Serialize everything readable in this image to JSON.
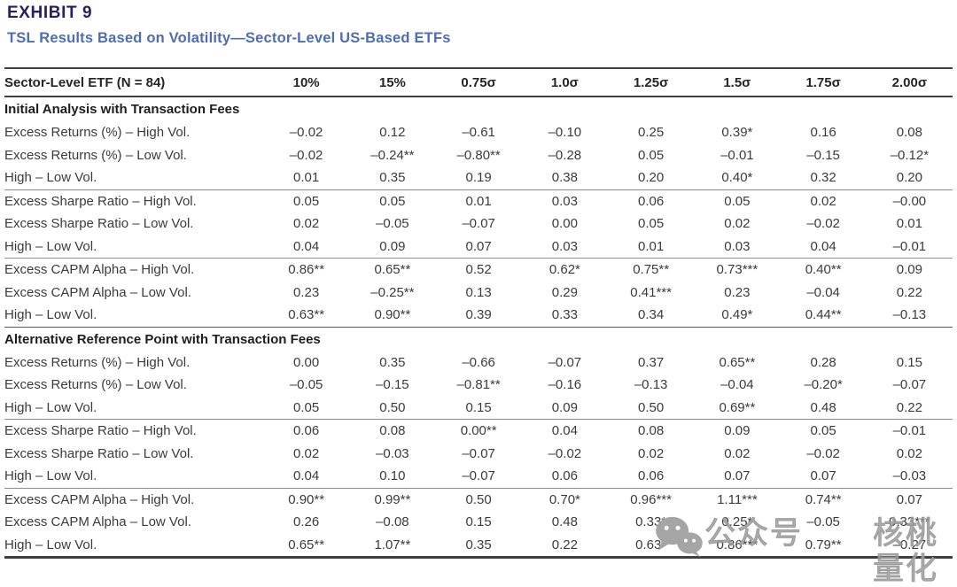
{
  "header": {
    "exhibit_label": "EXHIBIT 9",
    "subtitle": "TSL Results Based on Volatility—Sector-Level US-Based ETFs"
  },
  "table": {
    "label_header": "Sector-Level ETF (N = 84)",
    "columns": [
      "10%",
      "15%",
      "0.75σ",
      "1.0σ",
      "1.25σ",
      "1.5σ",
      "1.75σ",
      "2.00σ"
    ],
    "sections": [
      {
        "title": "Initial Analysis with Transaction Fees",
        "groups": [
          {
            "rows": [
              {
                "label": "Excess Returns (%) – High Vol.",
                "values": [
                  "–0.02",
                  "0.12",
                  "–0.61",
                  "–0.10",
                  "0.25",
                  "0.39*",
                  "0.16",
                  "0.08"
                ]
              },
              {
                "label": "Excess Returns (%) – Low Vol.",
                "values": [
                  "–0.02",
                  "–0.24**",
                  "–0.80**",
                  "–0.28",
                  "0.05",
                  "–0.01",
                  "–0.15",
                  "–0.12*"
                ]
              },
              {
                "label": "High – Low Vol.",
                "values": [
                  "0.01",
                  "0.35",
                  "0.19",
                  "0.38",
                  "0.20",
                  "0.40*",
                  "0.32",
                  "0.20"
                ]
              }
            ]
          },
          {
            "rows": [
              {
                "label": "Excess Sharpe Ratio – High Vol.",
                "values": [
                  "0.05",
                  "0.05",
                  "0.01",
                  "0.03",
                  "0.06",
                  "0.05",
                  "0.02",
                  "–0.00"
                ]
              },
              {
                "label": "Excess Sharpe Ratio – Low Vol.",
                "values": [
                  "0.02",
                  "–0.05",
                  "–0.07",
                  "0.00",
                  "0.05",
                  "0.02",
                  "–0.02",
                  "0.01"
                ]
              },
              {
                "label": "High – Low Vol.",
                "values": [
                  "0.04",
                  "0.09",
                  "0.07",
                  "0.03",
                  "0.01",
                  "0.03",
                  "0.04",
                  "–0.01"
                ]
              }
            ]
          },
          {
            "rows": [
              {
                "label": "Excess CAPM Alpha – High Vol.",
                "values": [
                  "0.86**",
                  "0.65**",
                  "0.52",
                  "0.62*",
                  "0.75**",
                  "0.73***",
                  "0.40**",
                  "0.09"
                ]
              },
              {
                "label": "Excess CAPM Alpha – Low Vol.",
                "values": [
                  "0.23",
                  "–0.25**",
                  "0.13",
                  "0.29",
                  "0.41***",
                  "0.23",
                  "–0.04",
                  "0.22"
                ]
              },
              {
                "label": "High – Low Vol.",
                "values": [
                  "0.63**",
                  "0.90**",
                  "0.39",
                  "0.33",
                  "0.34",
                  "0.49*",
                  "0.44**",
                  "–0.13"
                ]
              }
            ]
          }
        ]
      },
      {
        "title": "Alternative Reference Point with Transaction Fees",
        "groups": [
          {
            "rows": [
              {
                "label": "Excess Returns (%) – High Vol.",
                "values": [
                  "0.00",
                  "0.35",
                  "–0.66",
                  "–0.07",
                  "0.37",
                  "0.65**",
                  "0.28",
                  "0.15"
                ]
              },
              {
                "label": "Excess Returns (%) – Low Vol.",
                "values": [
                  "–0.05",
                  "–0.15",
                  "–0.81**",
                  "–0.16",
                  "–0.13",
                  "–0.04",
                  "–0.20*",
                  "–0.07"
                ]
              },
              {
                "label": "High – Low Vol.",
                "values": [
                  "0.05",
                  "0.50",
                  "0.15",
                  "0.09",
                  "0.50",
                  "0.69**",
                  "0.48",
                  "0.22"
                ]
              }
            ]
          },
          {
            "rows": [
              {
                "label": "Excess Sharpe Ratio – High Vol.",
                "values": [
                  "0.06",
                  "0.08",
                  "0.00**",
                  "0.04",
                  "0.08",
                  "0.09",
                  "0.05",
                  "–0.01"
                ]
              },
              {
                "label": "Excess Sharpe Ratio – Low Vol.",
                "values": [
                  "0.02",
                  "–0.03",
                  "–0.07",
                  "–0.02",
                  "0.02",
                  "0.02",
                  "–0.02",
                  "0.02"
                ]
              },
              {
                "label": "High – Low Vol.",
                "values": [
                  "0.04",
                  "0.10",
                  "–0.07",
                  "0.06",
                  "0.06",
                  "0.07",
                  "0.07",
                  "–0.03"
                ]
              }
            ]
          },
          {
            "rows": [
              {
                "label": "Excess CAPM Alpha – High Vol.",
                "values": [
                  "0.90**",
                  "0.99**",
                  "0.50",
                  "0.70*",
                  "0.96***",
                  "1.11***",
                  "0.74**",
                  "0.07"
                ]
              },
              {
                "label": "Excess CAPM Alpha – Low Vol.",
                "values": [
                  "0.26",
                  "–0.08",
                  "0.15",
                  "0.48",
                  "0.33*",
                  "0.25*",
                  "–0.05",
                  "0.33***"
                ]
              },
              {
                "label": "High – Low Vol.",
                "values": [
                  "0.65**",
                  "1.07**",
                  "0.35",
                  "0.22",
                  "0.63*",
                  "0.86***",
                  "0.79**",
                  "–0.27"
                ]
              }
            ]
          }
        ]
      }
    ]
  },
  "watermark": {
    "icon": "wechat-icon",
    "text_1": "公众号",
    "text_2": "核桃量化",
    "color": "#9e9e9e"
  }
}
